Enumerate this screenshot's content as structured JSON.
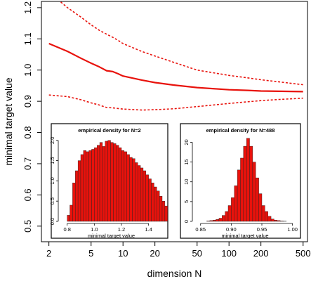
{
  "chart_data": [
    {
      "type": "line",
      "title": "",
      "xlabel": "dimension N",
      "ylabel": "minimal target value",
      "xscale": "log",
      "xlim": [
        1.7,
        550
      ],
      "ylim": [
        0.45,
        1.22
      ],
      "xticks": [
        2,
        5,
        10,
        20,
        50,
        100,
        200,
        500
      ],
      "yticks": [
        0.5,
        0.6,
        0.7,
        0.8,
        0.9,
        1.0,
        1.1,
        1.2
      ],
      "xtick_labels": [
        "2",
        "5",
        "10",
        "20",
        "50",
        "100",
        "200",
        "500"
      ],
      "ytick_labels": [
        "0.5",
        "0.6",
        "0.7",
        "0.8",
        "0.9",
        "1.0",
        "1.1",
        "1.2"
      ],
      "grid": false,
      "color": "#e8120c",
      "series": [
        {
          "style": "solid",
          "x": [
            2,
            3,
            4,
            5,
            6,
            7,
            8,
            9,
            10,
            15,
            20,
            30,
            50,
            100,
            150,
            200,
            300,
            500
          ],
          "y": [
            1.085,
            1.06,
            1.038,
            1.022,
            1.01,
            0.998,
            0.995,
            0.988,
            0.981,
            0.968,
            0.96,
            0.952,
            0.944,
            0.937,
            0.935,
            0.933,
            0.932,
            0.931
          ]
        },
        {
          "style": "dashed",
          "x": [
            2,
            3,
            4,
            5,
            6,
            7,
            8,
            9,
            10,
            15,
            20,
            30,
            50,
            100,
            150,
            200,
            300,
            500
          ],
          "y": [
            1.25,
            1.2,
            1.17,
            1.145,
            1.127,
            1.115,
            1.105,
            1.095,
            1.085,
            1.06,
            1.045,
            1.025,
            1.0,
            0.983,
            0.975,
            0.969,
            0.962,
            0.953
          ]
        },
        {
          "style": "dashed",
          "x": [
            2,
            3,
            4,
            5,
            6,
            7,
            8,
            10,
            15,
            20,
            30,
            50,
            100,
            200,
            300,
            500
          ],
          "y": [
            0.92,
            0.915,
            0.905,
            0.895,
            0.888,
            0.88,
            0.879,
            0.875,
            0.872,
            0.873,
            0.876,
            0.883,
            0.893,
            0.902,
            0.906,
            0.91
          ]
        }
      ]
    },
    {
      "type": "bar",
      "title": "empirical density for N=2",
      "xlabel": "minimal target value",
      "ylabel": "",
      "xlim": [
        0.75,
        1.5
      ],
      "ylim": [
        0,
        2.1
      ],
      "xticks": [
        0.8,
        1.0,
        1.2,
        1.4
      ],
      "yticks": [
        0.0,
        0.5,
        1.0,
        1.5,
        2.0
      ],
      "xtick_labels": [
        "0.8",
        "1.0",
        "1.2",
        "1.4"
      ],
      "ytick_labels": [
        "0.0",
        "0.5",
        "1.0",
        "1.5",
        "2.0"
      ],
      "bin_start": 0.8,
      "bin_width": 0.02,
      "color": "#e8120c",
      "values": [
        0.15,
        0.4,
        0.95,
        1.25,
        1.5,
        1.65,
        1.75,
        1.72,
        1.75,
        1.78,
        1.82,
        1.88,
        1.95,
        1.85,
        1.98,
        2.0,
        1.95,
        1.92,
        1.88,
        1.82,
        1.75,
        1.72,
        1.65,
        1.58,
        1.55,
        1.45,
        1.38,
        1.32,
        1.25,
        1.15,
        1.05,
        0.95,
        0.85,
        0.75,
        0.62,
        0.5,
        0.38
      ]
    },
    {
      "type": "bar",
      "title": "empirical density for N=488",
      "xlabel": "minimal target value",
      "ylabel": "",
      "xlim": [
        0.84,
        1.005
      ],
      "ylim": [
        0,
        21.5
      ],
      "xticks": [
        0.85,
        0.9,
        0.95,
        1.0
      ],
      "yticks": [
        0,
        5,
        10,
        15,
        20
      ],
      "xtick_labels": [
        "0.85",
        "0.90",
        "0.95",
        "1.00"
      ],
      "ytick_labels": [
        "0",
        "5",
        "10",
        "15",
        "20"
      ],
      "bin_start": 0.86,
      "bin_width": 0.005,
      "color": "#e8120c",
      "values": [
        0.1,
        0.2,
        0.3,
        0.5,
        0.8,
        1.5,
        2.5,
        4,
        6,
        9,
        13,
        16,
        19,
        21,
        19,
        15,
        11,
        7,
        4,
        2.5,
        1.3,
        0.6,
        0.3,
        0.2,
        0.1,
        0.05
      ]
    }
  ]
}
